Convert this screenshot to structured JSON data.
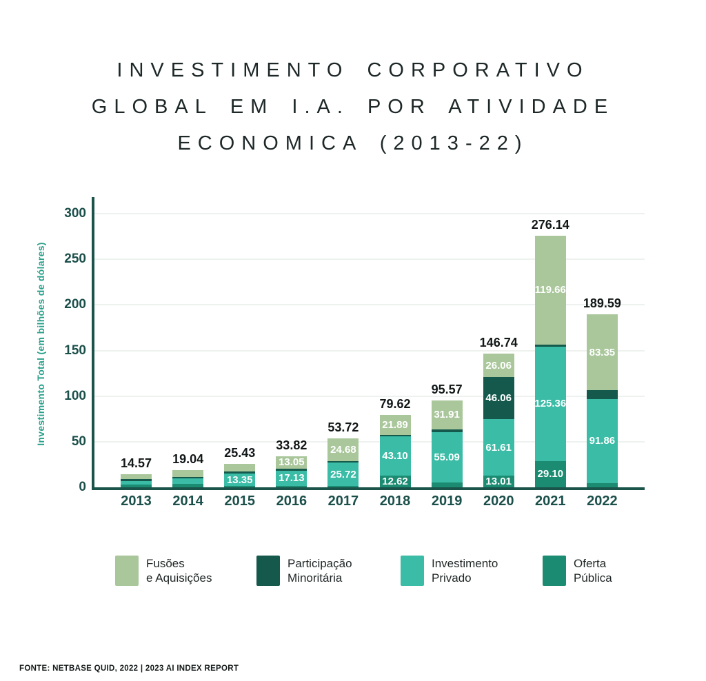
{
  "title": {
    "lines": [
      "INVESTIMENTO CORPORATIVO",
      "GLOBAL EM I.A. POR ATIVIDADE",
      "ECONOMICA (2013-22)"
    ]
  },
  "y_axis": {
    "title": "Investimento Total (em bilhões de dólares)",
    "ticks": [
      0,
      50,
      100,
      150,
      200,
      250,
      300
    ]
  },
  "footer": {
    "source": "FONTE: NETBASE QUID, 2022 | 2023 AI INDEX REPORT"
  },
  "colors": {
    "fusoes_aquisicoes": "#a9c79b",
    "participacao_minoritaria": "#15594c",
    "investimento_privado": "#3abca6",
    "oferta_publica": "#1b8b71",
    "axis": "#1a5349",
    "gridline": "#eef2ef",
    "tick_text": "#1a4f4a",
    "y_title_text": "#2aa08b"
  },
  "legend": {
    "items": [
      {
        "id": "fusoes-aquisicoes",
        "lines": [
          "Fusões",
          "e Aquisições"
        ],
        "color": "#a9c79b"
      },
      {
        "id": "participacao-minoritaria",
        "lines": [
          "Participação",
          "Minoritária"
        ],
        "color": "#15594c"
      },
      {
        "id": "investimento-privado",
        "lines": [
          "Investimento",
          "Privado"
        ],
        "color": "#3abca6"
      },
      {
        "id": "oferta-publica",
        "lines": [
          "Oferta",
          "Pública"
        ],
        "color": "#1b8b71"
      }
    ]
  },
  "chart_data": {
    "type": "bar",
    "stacked": true,
    "stack_order": "bottom_to_top",
    "title": "Investimento Corporativo Global em I.A. por Atividade Economica (2013-22)",
    "ylabel": "Investimento Total (em bilhões de dólares)",
    "ylim": [
      0,
      300
    ],
    "y_tick_step": 50,
    "grid": true,
    "legend_position": "bottom",
    "categories": [
      "2013",
      "2014",
      "2015",
      "2016",
      "2017",
      "2018",
      "2019",
      "2020",
      "2021",
      "2022"
    ],
    "totals": [
      14.57,
      19.04,
      25.43,
      33.82,
      53.72,
      79.62,
      95.57,
      146.74,
      276.14,
      189.59
    ],
    "total_labels": [
      "14.57",
      "19.04",
      "25.43",
      "33.82",
      "53.72",
      "79.62",
      "95.57",
      "146.74",
      "276.14",
      "189.59"
    ],
    "series": [
      {
        "name": "Oferta Pública",
        "color": "#1b8b71",
        "values": [
          3.04,
          3.74,
          1.48,
          1.34,
          1.42,
          12.62,
          5.47,
          13.01,
          29.1,
          4.88
        ],
        "value_labels": [
          null,
          null,
          null,
          null,
          null,
          "12.62",
          null,
          "13.01",
          "29.10",
          null
        ]
      },
      {
        "name": "Investimento Privado",
        "color": "#3abca6",
        "values": [
          3.9,
          6.1,
          13.35,
          17.13,
          25.72,
          43.1,
          55.09,
          61.61,
          125.36,
          91.86
        ],
        "value_labels": [
          null,
          null,
          "13.35",
          "17.13",
          "25.72",
          "43.10",
          "55.09",
          "61.61",
          "125.36",
          "91.86"
        ]
      },
      {
        "name": "Participação Minoritária",
        "color": "#15594c",
        "values": [
          2.26,
          1.7,
          2.2,
          2.3,
          1.9,
          2.01,
          3.1,
          46.06,
          2.02,
          9.5
        ],
        "value_labels": [
          null,
          null,
          null,
          null,
          null,
          null,
          null,
          "46.06",
          null,
          null
        ]
      },
      {
        "name": "Fusões e Aquisições",
        "color": "#a9c79b",
        "values": [
          5.37,
          7.5,
          8.4,
          13.05,
          24.68,
          21.89,
          31.91,
          26.06,
          119.66,
          83.35
        ],
        "value_labels": [
          null,
          null,
          null,
          "13.05",
          "24.68",
          "21.89",
          "31.91",
          "26.06",
          "119.66",
          "83.35"
        ]
      }
    ]
  }
}
